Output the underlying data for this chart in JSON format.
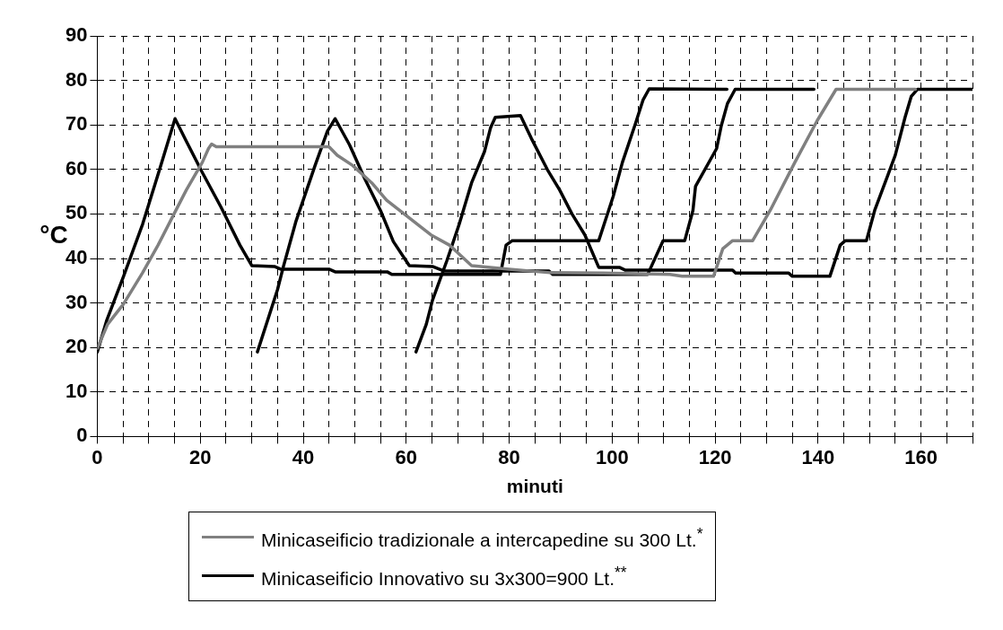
{
  "chart_data": {
    "type": "line",
    "xlabel": "minuti",
    "ylabel": "°C",
    "xlim": [
      0,
      170
    ],
    "ylim": [
      0,
      90
    ],
    "xticks": [
      0,
      {
        "value": 5,
        "label": null
      },
      {
        "value": 10,
        "label": null
      },
      {
        "value": 15,
        "label": null
      },
      20,
      {
        "value": 25,
        "label": null
      },
      {
        "value": 30,
        "label": null
      },
      {
        "value": 35,
        "label": null
      },
      40,
      {
        "value": 45,
        "label": null
      },
      {
        "value": 50,
        "label": null
      },
      {
        "value": 55,
        "label": null
      },
      60,
      {
        "value": 65,
        "label": null
      },
      {
        "value": 70,
        "label": null
      },
      {
        "value": 75,
        "label": null
      },
      80,
      {
        "value": 85,
        "label": null
      },
      {
        "value": 90,
        "label": null
      },
      {
        "value": 95,
        "label": null
      },
      100,
      {
        "value": 105,
        "label": null
      },
      {
        "value": 110,
        "label": null
      },
      {
        "value": 115,
        "label": null
      },
      120,
      {
        "value": 125,
        "label": null
      },
      {
        "value": 130,
        "label": null
      },
      {
        "value": 135,
        "label": null
      },
      140,
      {
        "value": 145,
        "label": null
      },
      {
        "value": 150,
        "label": null
      },
      {
        "value": 155,
        "label": null
      },
      160,
      {
        "value": 165,
        "label": null
      },
      {
        "value": 170,
        "label": null
      }
    ],
    "yticks": [
      0,
      10,
      20,
      30,
      40,
      50,
      60,
      70,
      80,
      90
    ],
    "grid": true,
    "legend": "bottom",
    "marker": "none",
    "line_style": "solid",
    "series": [
      {
        "name": "Minicaseificio tradizionale a intercapedine su 300 Lt.$^{*}$",
        "color": "#808080",
        "x": [
          0,
          2,
          5.1,
          8.8,
          11.8,
          14.9,
          17.3,
          20.4,
          21.6,
          22.2,
          23.1,
          45,
          46.6,
          49.6,
          53.3,
          56.2,
          60.5,
          64.8,
          68.4,
          72.7,
          80,
          88,
          98.3,
          111.2,
          113.6,
          119.7,
          121.5,
          123.4,
          127.3,
          130.7,
          135.5,
          139.8,
          143.5,
          158.9
        ],
        "values": [
          19.8,
          25.2,
          29.8,
          36.8,
          43,
          50,
          55.4,
          61.6,
          64.7,
          65.7,
          65.1,
          65.1,
          63.2,
          60.9,
          57,
          53.1,
          49.2,
          45.3,
          43,
          38.4,
          37.6,
          36.8,
          36.7,
          36.4,
          36,
          36,
          42.2,
          44,
          44,
          50.8,
          61.6,
          70.9,
          78,
          78
        ]
      },
      {
        "name": "Minicaseificio Innovativo su 3x300=900 Lt.$^{**}$",
        "color": "#000000",
        "x": [
          0,
          1.8,
          5.1,
          8.8,
          12.1,
          15.1,
          17.3,
          20.4,
          24,
          27.7,
          30,
          34.4,
          35.6,
          45,
          46.2,
          56.3,
          57.2,
          78.3,
          79.4,
          80.6,
          97.4,
          100.2,
          102,
          104.5,
          106,
          107.2,
          122.3
        ],
        "values": [
          19,
          26,
          36,
          47.7,
          60,
          71.4,
          66.3,
          59.3,
          51.6,
          43,
          38.4,
          38.2,
          37.6,
          37.6,
          37,
          37,
          36.4,
          36.4,
          43,
          44,
          44,
          53.9,
          61.6,
          70.2,
          75.6,
          78.1,
          78
        ]
      },
      {
        "color": "#000000",
        "x": [
          31.1,
          35,
          36.2,
          38.6,
          42.3,
          44.7,
          46.2,
          49,
          52,
          55,
          57.5,
          60.6,
          65.1,
          67.3,
          87.7,
          88.5,
          106.9,
          109.9,
          114.1,
          115.7,
          116.2,
          120.3,
          121.2,
          122.4,
          123.9,
          139.2
        ],
        "values": [
          19,
          33,
          38.4,
          48.4,
          60.9,
          68.6,
          71.4,
          65.5,
          57.8,
          50.8,
          43.8,
          38.4,
          38.2,
          37.2,
          37.2,
          36.4,
          36.4,
          44,
          44,
          50.8,
          56.2,
          64.7,
          69.8,
          74.8,
          78,
          78
        ]
      },
      {
        "color": "#000000",
        "x": [
          61.9,
          63.9,
          65.1,
          67.9,
          70.3,
          72.7,
          75.2,
          76.4,
          77.3,
          82.2,
          84.3,
          87.4,
          89.8,
          92.2,
          94.7,
          97.4,
          101.4,
          102.5,
          123.4,
          124,
          134.3,
          135,
          142.3,
          144.3,
          145.3,
          149.4,
          151,
          153.5,
          155,
          156.9,
          158.1,
          159.3,
          170
        ],
        "values": [
          19,
          25.2,
          30.6,
          39.5,
          47.7,
          57,
          64,
          69.4,
          71.7,
          72.1,
          67,
          60,
          55.4,
          50,
          45.3,
          38,
          38,
          37.4,
          37.4,
          36.7,
          36.7,
          36,
          36,
          43,
          44,
          44,
          50.8,
          58.5,
          63.2,
          71.7,
          76.4,
          78,
          78
        ]
      }
    ]
  }
}
